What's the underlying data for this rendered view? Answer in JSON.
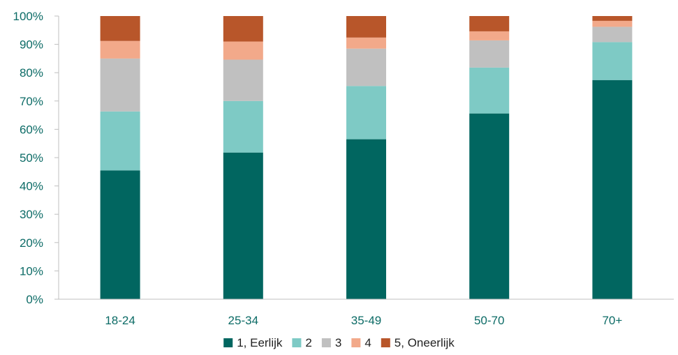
{
  "chart_data": {
    "type": "bar",
    "stacked": true,
    "categories": [
      "18-24",
      "25-34",
      "35-49",
      "50-70",
      "70+"
    ],
    "series": [
      {
        "name": "1, Eerlijk",
        "color": "#016660",
        "values": [
          45.5,
          51.8,
          56.5,
          65.6,
          77.4
        ]
      },
      {
        "name": "2",
        "color": "#7ecac5",
        "values": [
          20.8,
          18.2,
          18.8,
          16.2,
          13.4
        ]
      },
      {
        "name": "3",
        "color": "#c0c0c0",
        "values": [
          18.7,
          14.6,
          13.2,
          9.6,
          5.4
        ]
      },
      {
        "name": "4",
        "color": "#f2a98a",
        "values": [
          6.2,
          6.4,
          3.9,
          3.2,
          2.1
        ]
      },
      {
        "name": "5, Oneerlijk",
        "color": "#b8562a",
        "values": [
          8.8,
          9.0,
          7.6,
          5.4,
          1.7
        ]
      }
    ],
    "y_ticks": [
      "0%",
      "10%",
      "20%",
      "30%",
      "40%",
      "50%",
      "60%",
      "70%",
      "80%",
      "90%",
      "100%"
    ],
    "ylim": [
      0,
      100
    ],
    "grid": false,
    "legend_position": "bottom",
    "axis_label_color": "#0c6b66"
  }
}
